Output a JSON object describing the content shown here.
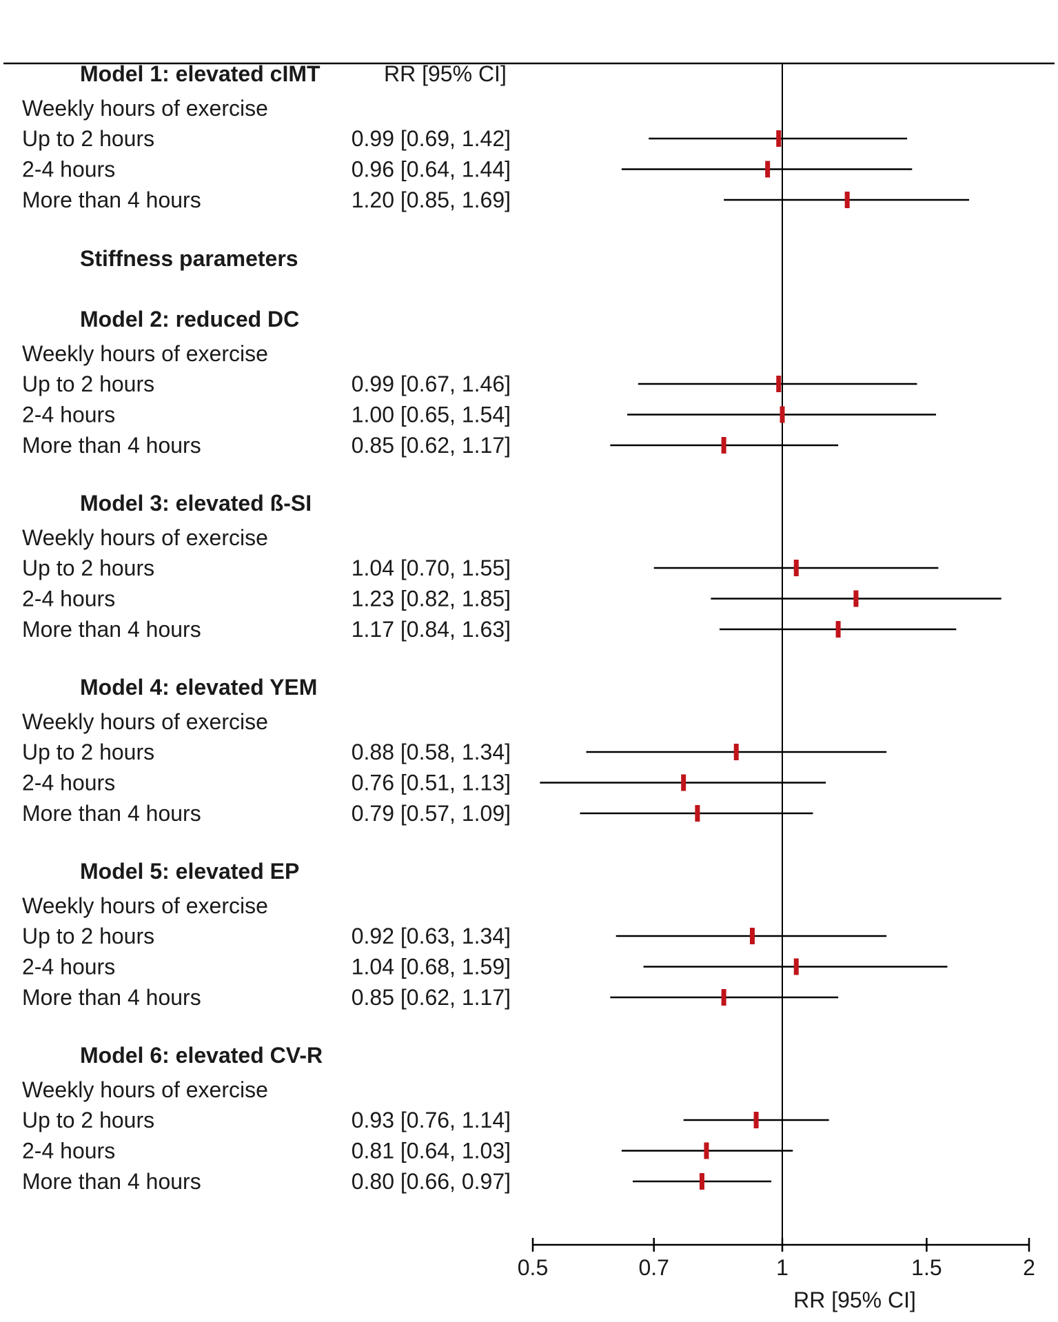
{
  "chart_data": {
    "type": "forest",
    "column_header": "RR [95% CI]",
    "xlabel": "RR [95% CI]",
    "x_scale": "log",
    "x_ticks": [
      0.5,
      0.7,
      1,
      1.5,
      2
    ],
    "x_tick_labels": [
      "0.5",
      "0.7",
      "1",
      "1.5",
      "2"
    ],
    "reference_line": 1,
    "colors": {
      "point": "#c0141a",
      "line": "#000000"
    },
    "section_title": "Stiffness parameters",
    "models": [
      {
        "title": "Model 1: elevated cIMT",
        "subheader": "Weekly hours of exercise",
        "rows": [
          {
            "label": "Up to 2 hours",
            "text": "0.99 [0.69, 1.42]",
            "rr": 0.99,
            "lo": 0.69,
            "hi": 1.42
          },
          {
            "label": "2-4 hours",
            "text": "0.96 [0.64, 1.44]",
            "rr": 0.96,
            "lo": 0.64,
            "hi": 1.44
          },
          {
            "label": "More than 4 hours",
            "text": "1.20 [0.85, 1.69]",
            "rr": 1.2,
            "lo": 0.85,
            "hi": 1.69
          }
        ]
      },
      {
        "title": "Model 2: reduced DC",
        "subheader": "Weekly hours of exercise",
        "rows": [
          {
            "label": "Up to 2 hours",
            "text": "0.99 [0.67, 1.46]",
            "rr": 0.99,
            "lo": 0.67,
            "hi": 1.46
          },
          {
            "label": "2-4 hours",
            "text": "1.00 [0.65, 1.54]",
            "rr": 1.0,
            "lo": 0.65,
            "hi": 1.54
          },
          {
            "label": "More than 4 hours",
            "text": "0.85 [0.62, 1.17]",
            "rr": 0.85,
            "lo": 0.62,
            "hi": 1.17
          }
        ]
      },
      {
        "title": "Model 3: elevated ß-SI",
        "subheader": "Weekly hours of exercise",
        "rows": [
          {
            "label": "Up to 2 hours",
            "text": "1.04 [0.70, 1.55]",
            "rr": 1.04,
            "lo": 0.7,
            "hi": 1.55
          },
          {
            "label": "2-4 hours",
            "text": "1.23 [0.82, 1.85]",
            "rr": 1.23,
            "lo": 0.82,
            "hi": 1.85
          },
          {
            "label": "More than 4 hours",
            "text": "1.17 [0.84, 1.63]",
            "rr": 1.17,
            "lo": 0.84,
            "hi": 1.63
          }
        ]
      },
      {
        "title": "Model 4: elevated YEM",
        "subheader": "Weekly hours of exercise",
        "rows": [
          {
            "label": "Up to 2 hours",
            "text": "0.88 [0.58, 1.34]",
            "rr": 0.88,
            "lo": 0.58,
            "hi": 1.34
          },
          {
            "label": "2-4 hours",
            "text": "0.76 [0.51, 1.13]",
            "rr": 0.76,
            "lo": 0.51,
            "hi": 1.13
          },
          {
            "label": "More than 4 hours",
            "text": "0.79 [0.57, 1.09]",
            "rr": 0.79,
            "lo": 0.57,
            "hi": 1.09
          }
        ]
      },
      {
        "title": "Model 5: elevated EP",
        "subheader": "Weekly hours of exercise",
        "rows": [
          {
            "label": "Up to 2 hours",
            "text": "0.92 [0.63, 1.34]",
            "rr": 0.92,
            "lo": 0.63,
            "hi": 1.34
          },
          {
            "label": "2-4 hours",
            "text": "1.04 [0.68, 1.59]",
            "rr": 1.04,
            "lo": 0.68,
            "hi": 1.59
          },
          {
            "label": "More than 4 hours",
            "text": "0.85 [0.62, 1.17]",
            "rr": 0.85,
            "lo": 0.62,
            "hi": 1.17
          }
        ]
      },
      {
        "title": "Model 6: elevated CV-R",
        "subheader": "Weekly hours of exercise",
        "rows": [
          {
            "label": "Up to 2 hours",
            "text": "0.93 [0.76, 1.14]",
            "rr": 0.93,
            "lo": 0.76,
            "hi": 1.14
          },
          {
            "label": "2-4 hours",
            "text": "0.81 [0.64, 1.03]",
            "rr": 0.81,
            "lo": 0.64,
            "hi": 1.03
          },
          {
            "label": "More than 4 hours",
            "text": "0.80 [0.66, 0.97]",
            "rr": 0.8,
            "lo": 0.66,
            "hi": 0.97
          }
        ]
      }
    ]
  }
}
